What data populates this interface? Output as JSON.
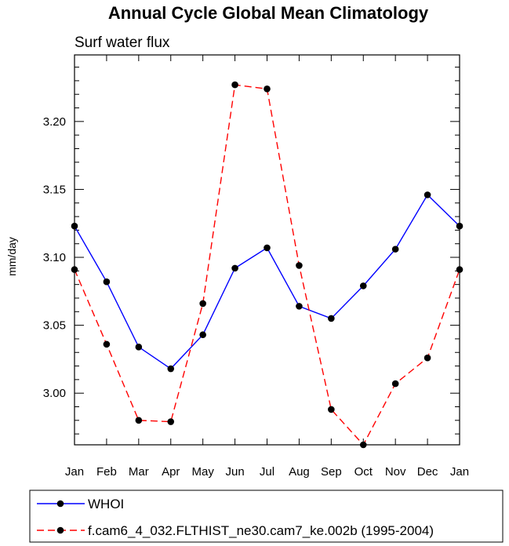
{
  "chart_data": {
    "type": "line",
    "title": "Annual Cycle Global Mean Climatology",
    "subtitle": "Surf water flux",
    "xlabel": "",
    "ylabel": "mm/day",
    "categories": [
      "Jan",
      "Feb",
      "Mar",
      "Apr",
      "May",
      "Jun",
      "Jul",
      "Aug",
      "Sep",
      "Oct",
      "Nov",
      "Dec",
      "Jan"
    ],
    "ylim": [
      2.962,
      3.249
    ],
    "yticks": [
      "3.00",
      "3.05",
      "3.10",
      "3.15",
      "3.20"
    ],
    "series": [
      {
        "name": "WHOI",
        "color": "#0000ff",
        "dash": "solid",
        "values": [
          3.123,
          3.082,
          3.034,
          3.018,
          3.043,
          3.092,
          3.107,
          3.064,
          3.055,
          3.079,
          3.106,
          3.146,
          3.123
        ]
      },
      {
        "name": "f.cam6_4_032.FLTHIST_ne30.cam7_ke.002b (1995-2004)",
        "color": "#ff0000",
        "dash": "dashed",
        "values": [
          3.091,
          3.036,
          2.98,
          2.979,
          3.066,
          3.227,
          3.224,
          3.094,
          2.988,
          2.962,
          3.007,
          3.026,
          3.091
        ]
      }
    ]
  }
}
